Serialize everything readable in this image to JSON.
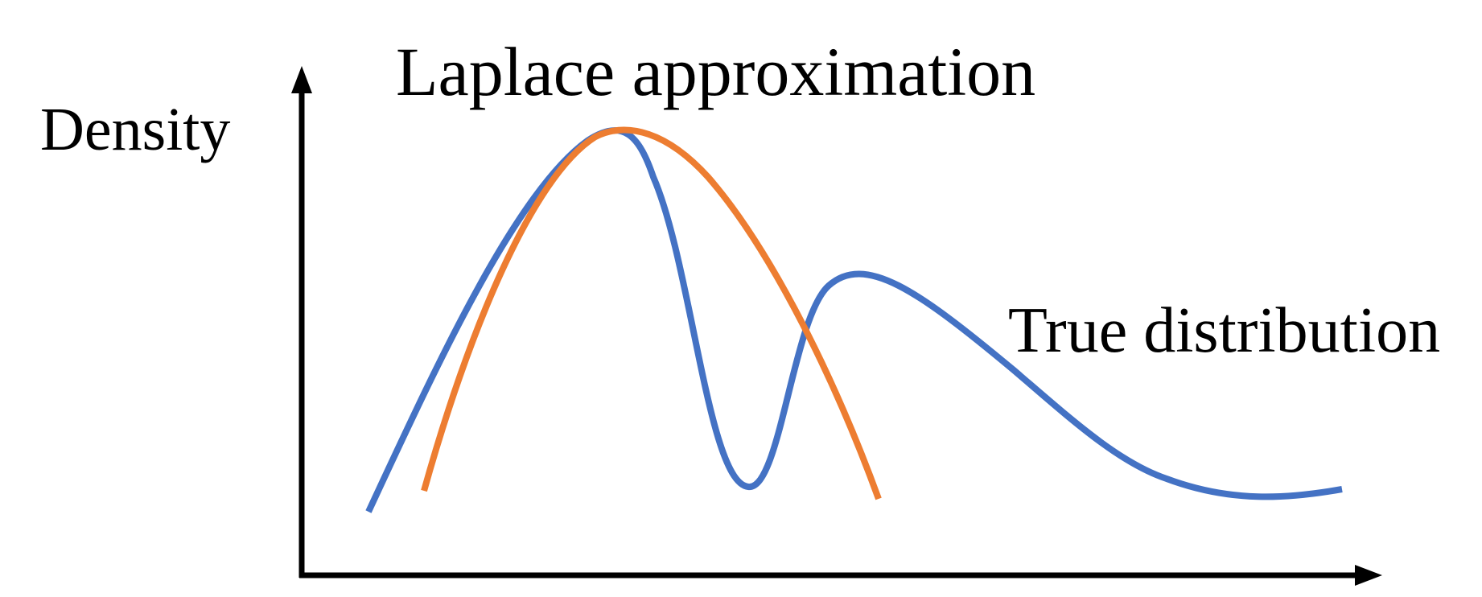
{
  "labels": {
    "laplace": "Laplace approximation",
    "y_axis": "Density",
    "true_distribution": "True distribution"
  },
  "colors": {
    "true_distribution": "#4472c4",
    "laplace_approximation": "#ed7d31",
    "axes": "#000000",
    "background": "#ffffff"
  },
  "chart_data": {
    "type": "line",
    "title": "",
    "xlabel": "",
    "ylabel": "Density",
    "grid": false,
    "ticks": false,
    "series": [
      {
        "name": "True distribution",
        "shape": "bimodal",
        "modes": [
          "tall narrow mode",
          "lower broad right-skewed mode"
        ]
      },
      {
        "name": "Laplace approximation",
        "shape": "gaussian fit at the tallest mode"
      }
    ]
  }
}
